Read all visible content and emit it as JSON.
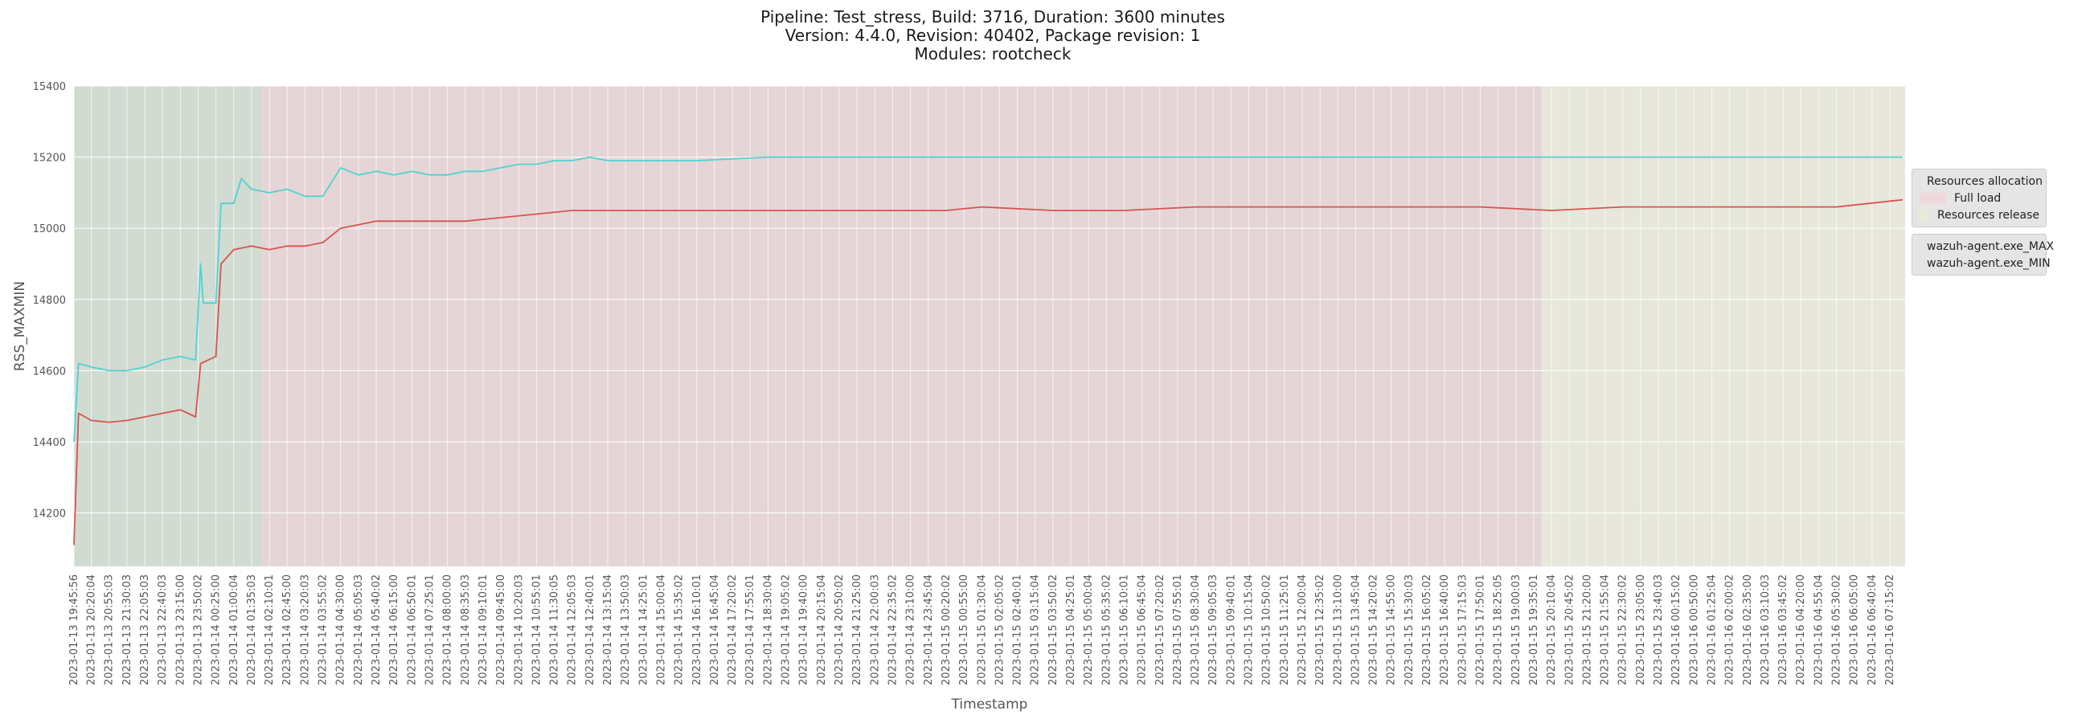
{
  "title": {
    "line1": "Pipeline: Test_stress, Build: 3716, Duration: 3600 minutes",
    "line2": "Version: 4.4.0, Revision: 40402, Package revision: 1",
    "line3": "Modules: rootcheck"
  },
  "chart_data": {
    "type": "line",
    "xlabel": "Timestamp",
    "ylabel": "RSS_MAXMIN",
    "ylim": [
      14050,
      15400
    ],
    "yticks": [
      14200,
      14400,
      14600,
      14800,
      15000,
      15200,
      15400
    ],
    "grid": true,
    "xticks": [
      "2023-01-13 19:45:56",
      "2023-01-13 20:20:04",
      "2023-01-13 20:55:03",
      "2023-01-13 21:30:03",
      "2023-01-13 22:05:03",
      "2023-01-13 22:40:03",
      "2023-01-13 23:15:00",
      "2023-01-13 23:50:02",
      "2023-01-14 00:25:00",
      "2023-01-14 01:00:04",
      "2023-01-14 01:35:03",
      "2023-01-14 02:10:01",
      "2023-01-14 02:45:00",
      "2023-01-14 03:20:03",
      "2023-01-14 03:55:02",
      "2023-01-14 04:30:00",
      "2023-01-14 05:05:03",
      "2023-01-14 05:40:02",
      "2023-01-14 06:15:00",
      "2023-01-14 06:50:01",
      "2023-01-14 07:25:01",
      "2023-01-14 08:00:00",
      "2023-01-14 08:35:03",
      "2023-01-14 09:10:01",
      "2023-01-14 09:45:00",
      "2023-01-14 10:20:03",
      "2023-01-14 10:55:01",
      "2023-01-14 11:30:05",
      "2023-01-14 12:05:03",
      "2023-01-14 12:40:01",
      "2023-01-14 13:15:04",
      "2023-01-14 13:50:03",
      "2023-01-14 14:25:01",
      "2023-01-14 15:00:04",
      "2023-01-14 15:35:02",
      "2023-01-14 16:10:01",
      "2023-01-14 16:45:04",
      "2023-01-14 17:20:02",
      "2023-01-14 17:55:01",
      "2023-01-14 18:30:04",
      "2023-01-14 19:05:02",
      "2023-01-14 19:40:00",
      "2023-01-14 20:15:04",
      "2023-01-14 20:50:02",
      "2023-01-14 21:25:00",
      "2023-01-14 22:00:03",
      "2023-01-14 22:35:02",
      "2023-01-14 23:10:00",
      "2023-01-14 23:45:04",
      "2023-01-15 00:20:02",
      "2023-01-15 00:55:00",
      "2023-01-15 01:30:04",
      "2023-01-15 02:05:02",
      "2023-01-15 02:40:01",
      "2023-01-15 03:15:04",
      "2023-01-15 03:50:02",
      "2023-01-15 04:25:01",
      "2023-01-15 05:00:04",
      "2023-01-15 05:35:02",
      "2023-01-15 06:10:01",
      "2023-01-15 06:45:04",
      "2023-01-15 07:20:02",
      "2023-01-15 07:55:01",
      "2023-01-15 08:30:04",
      "2023-01-15 09:05:03",
      "2023-01-15 09:40:01",
      "2023-01-15 10:15:04",
      "2023-01-15 10:50:02",
      "2023-01-15 11:25:01",
      "2023-01-15 12:00:04",
      "2023-01-15 12:35:02",
      "2023-01-15 13:10:00",
      "2023-01-15 13:45:04",
      "2023-01-15 14:20:02",
      "2023-01-15 14:55:00",
      "2023-01-15 15:30:03",
      "2023-01-15 16:05:02",
      "2023-01-15 16:40:00",
      "2023-01-15 17:15:03",
      "2023-01-15 17:50:01",
      "2023-01-15 18:25:05",
      "2023-01-15 19:00:03",
      "2023-01-15 19:35:01",
      "2023-01-15 20:10:04",
      "2023-01-15 20:45:02",
      "2023-01-15 21:20:00",
      "2023-01-15 21:55:04",
      "2023-01-15 22:30:02",
      "2023-01-15 23:05:00",
      "2023-01-15 23:40:03",
      "2023-01-16 00:15:02",
      "2023-01-16 00:50:00",
      "2023-01-16 01:25:04",
      "2023-01-16 02:00:02",
      "2023-01-16 02:35:00",
      "2023-01-16 03:10:03",
      "2023-01-16 03:45:02",
      "2023-01-16 04:20:00",
      "2023-01-16 04:55:04",
      "2023-01-16 05:30:02",
      "2023-01-16 06:05:00",
      "2023-01-16 06:40:04",
      "2023-01-16 07:15:02"
    ],
    "phases": [
      {
        "name": "Resources allocation",
        "start": "2023-01-13 19:45:56",
        "end": "2023-01-14 01:55:00",
        "color": "#8fbc8f"
      },
      {
        "name": "Full load",
        "start": "2023-01-14 01:55:00",
        "end": "2023-01-15 19:50:00",
        "color": "#e8a0a8"
      },
      {
        "name": "Resources release",
        "start": "2023-01-15 19:50:00",
        "end": "2023-01-16 07:45:00",
        "color": "#f2f2c0"
      }
    ],
    "series": [
      {
        "name": "wazuh-agent.exe_MAX",
        "color": "#4fd3d3",
        "points": [
          [
            "2023-01-13 19:45:56",
            14400
          ],
          [
            "2023-01-13 19:55:00",
            14620
          ],
          [
            "2023-01-13 20:20:00",
            14610
          ],
          [
            "2023-01-13 20:55:00",
            14600
          ],
          [
            "2023-01-13 21:30:00",
            14600
          ],
          [
            "2023-01-13 22:05:00",
            14610
          ],
          [
            "2023-01-13 22:40:00",
            14630
          ],
          [
            "2023-01-13 23:15:00",
            14640
          ],
          [
            "2023-01-13 23:45:00",
            14630
          ],
          [
            "2023-01-13 23:55:00",
            14900
          ],
          [
            "2023-01-14 00:00:00",
            14790
          ],
          [
            "2023-01-14 00:25:00",
            14790
          ],
          [
            "2023-01-14 00:35:00",
            15070
          ],
          [
            "2023-01-14 01:00:00",
            15070
          ],
          [
            "2023-01-14 01:15:00",
            15140
          ],
          [
            "2023-01-14 01:35:00",
            15110
          ],
          [
            "2023-01-14 02:10:00",
            15100
          ],
          [
            "2023-01-14 02:45:00",
            15110
          ],
          [
            "2023-01-14 03:20:00",
            15090
          ],
          [
            "2023-01-14 03:55:00",
            15090
          ],
          [
            "2023-01-14 04:30:00",
            15170
          ],
          [
            "2023-01-14 05:05:00",
            15150
          ],
          [
            "2023-01-14 05:40:00",
            15160
          ],
          [
            "2023-01-14 06:15:00",
            15150
          ],
          [
            "2023-01-14 06:50:00",
            15160
          ],
          [
            "2023-01-14 07:25:00",
            15150
          ],
          [
            "2023-01-14 08:00:00",
            15150
          ],
          [
            "2023-01-14 08:35:00",
            15160
          ],
          [
            "2023-01-14 09:10:00",
            15160
          ],
          [
            "2023-01-14 09:45:00",
            15170
          ],
          [
            "2023-01-14 10:20:00",
            15180
          ],
          [
            "2023-01-14 10:55:00",
            15180
          ],
          [
            "2023-01-14 11:30:00",
            15190
          ],
          [
            "2023-01-14 12:05:00",
            15190
          ],
          [
            "2023-01-14 12:40:00",
            15200
          ],
          [
            "2023-01-14 13:15:00",
            15190
          ],
          [
            "2023-01-14 14:25:00",
            15190
          ],
          [
            "2023-01-14 16:10:00",
            15190
          ],
          [
            "2023-01-14 18:30:00",
            15200
          ],
          [
            "2023-01-14 21:25:00",
            15200
          ],
          [
            "2023-01-15 00:20:00",
            15200
          ],
          [
            "2023-01-15 03:15:00",
            15200
          ],
          [
            "2023-01-15 06:10:00",
            15200
          ],
          [
            "2023-01-15 09:05:00",
            15200
          ],
          [
            "2023-01-15 12:00:00",
            15200
          ],
          [
            "2023-01-15 14:55:00",
            15200
          ],
          [
            "2023-01-15 17:50:00",
            15200
          ],
          [
            "2023-01-15 20:45:00",
            15200
          ],
          [
            "2023-01-15 23:40:00",
            15200
          ],
          [
            "2023-01-16 02:35:00",
            15200
          ],
          [
            "2023-01-16 05:30:00",
            15200
          ],
          [
            "2023-01-16 07:40:00",
            15200
          ]
        ]
      },
      {
        "name": "wazuh-agent.exe_MIN",
        "color": "#d9534f",
        "points": [
          [
            "2023-01-13 19:45:56",
            14110
          ],
          [
            "2023-01-13 19:55:00",
            14480
          ],
          [
            "2023-01-13 20:20:00",
            14460
          ],
          [
            "2023-01-13 20:55:00",
            14455
          ],
          [
            "2023-01-13 21:30:00",
            14460
          ],
          [
            "2023-01-13 22:05:00",
            14470
          ],
          [
            "2023-01-13 22:40:00",
            14480
          ],
          [
            "2023-01-13 23:15:00",
            14490
          ],
          [
            "2023-01-13 23:45:00",
            14470
          ],
          [
            "2023-01-13 23:55:00",
            14620
          ],
          [
            "2023-01-14 00:25:00",
            14640
          ],
          [
            "2023-01-14 00:35:00",
            14900
          ],
          [
            "2023-01-14 01:00:00",
            14940
          ],
          [
            "2023-01-14 01:35:00",
            14950
          ],
          [
            "2023-01-14 02:10:00",
            14940
          ],
          [
            "2023-01-14 02:45:00",
            14950
          ],
          [
            "2023-01-14 03:20:00",
            14950
          ],
          [
            "2023-01-14 03:55:00",
            14960
          ],
          [
            "2023-01-14 04:30:00",
            15000
          ],
          [
            "2023-01-14 05:05:00",
            15010
          ],
          [
            "2023-01-14 05:40:00",
            15020
          ],
          [
            "2023-01-14 06:15:00",
            15020
          ],
          [
            "2023-01-14 07:25:00",
            15020
          ],
          [
            "2023-01-14 08:35:00",
            15020
          ],
          [
            "2023-01-14 09:45:00",
            15030
          ],
          [
            "2023-01-14 10:55:00",
            15040
          ],
          [
            "2023-01-14 12:05:00",
            15050
          ],
          [
            "2023-01-14 13:15:00",
            15050
          ],
          [
            "2023-01-14 15:00:00",
            15050
          ],
          [
            "2023-01-14 17:20:00",
            15050
          ],
          [
            "2023-01-14 19:40:00",
            15050
          ],
          [
            "2023-01-14 22:00:00",
            15050
          ],
          [
            "2023-01-15 00:20:00",
            15050
          ],
          [
            "2023-01-15 01:30:00",
            15060
          ],
          [
            "2023-01-15 03:50:00",
            15050
          ],
          [
            "2023-01-15 06:10:00",
            15050
          ],
          [
            "2023-01-15 08:30:00",
            15060
          ],
          [
            "2023-01-15 10:50:00",
            15060
          ],
          [
            "2023-01-15 13:10:00",
            15060
          ],
          [
            "2023-01-15 15:30:00",
            15060
          ],
          [
            "2023-01-15 17:50:00",
            15060
          ],
          [
            "2023-01-15 20:10:00",
            15050
          ],
          [
            "2023-01-15 22:30:00",
            15060
          ],
          [
            "2023-01-16 00:50:00",
            15060
          ],
          [
            "2023-01-16 03:10:00",
            15060
          ],
          [
            "2023-01-16 05:30:00",
            15060
          ],
          [
            "2023-01-16 07:40:00",
            15080
          ]
        ]
      }
    ]
  }
}
